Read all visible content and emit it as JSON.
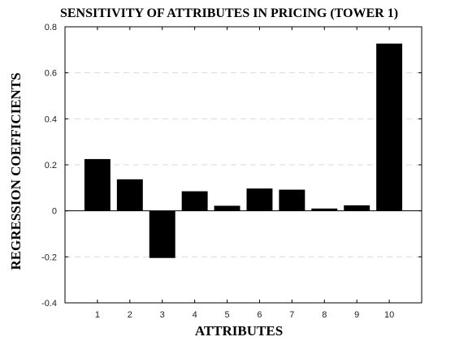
{
  "chart_data": {
    "type": "bar",
    "title": "SENSITIVITY OF ATTRIBUTES IN PRICING (TOWER 1)",
    "xlabel": "ATTRIBUTES",
    "ylabel": "REGRESSION COEFFICIENTS",
    "categories": [
      "1",
      "2",
      "3",
      "4",
      "5",
      "6",
      "7",
      "8",
      "9",
      "10"
    ],
    "values": [
      0.225,
      0.137,
      -0.205,
      0.085,
      0.022,
      0.097,
      0.092,
      0.01,
      0.024,
      0.727
    ],
    "ylim": [
      -0.4,
      0.8
    ],
    "yticks": [
      -0.4,
      -0.2,
      0,
      0.2,
      0.4,
      0.6,
      0.8
    ],
    "ytick_labels": [
      "-0.4",
      "-0.2",
      "0",
      "0.2",
      "0.4",
      "0.6",
      "0.8"
    ],
    "grid": "horizontal dashed",
    "bar_color": "#000000",
    "gridline_color": "#d9d9d9"
  }
}
